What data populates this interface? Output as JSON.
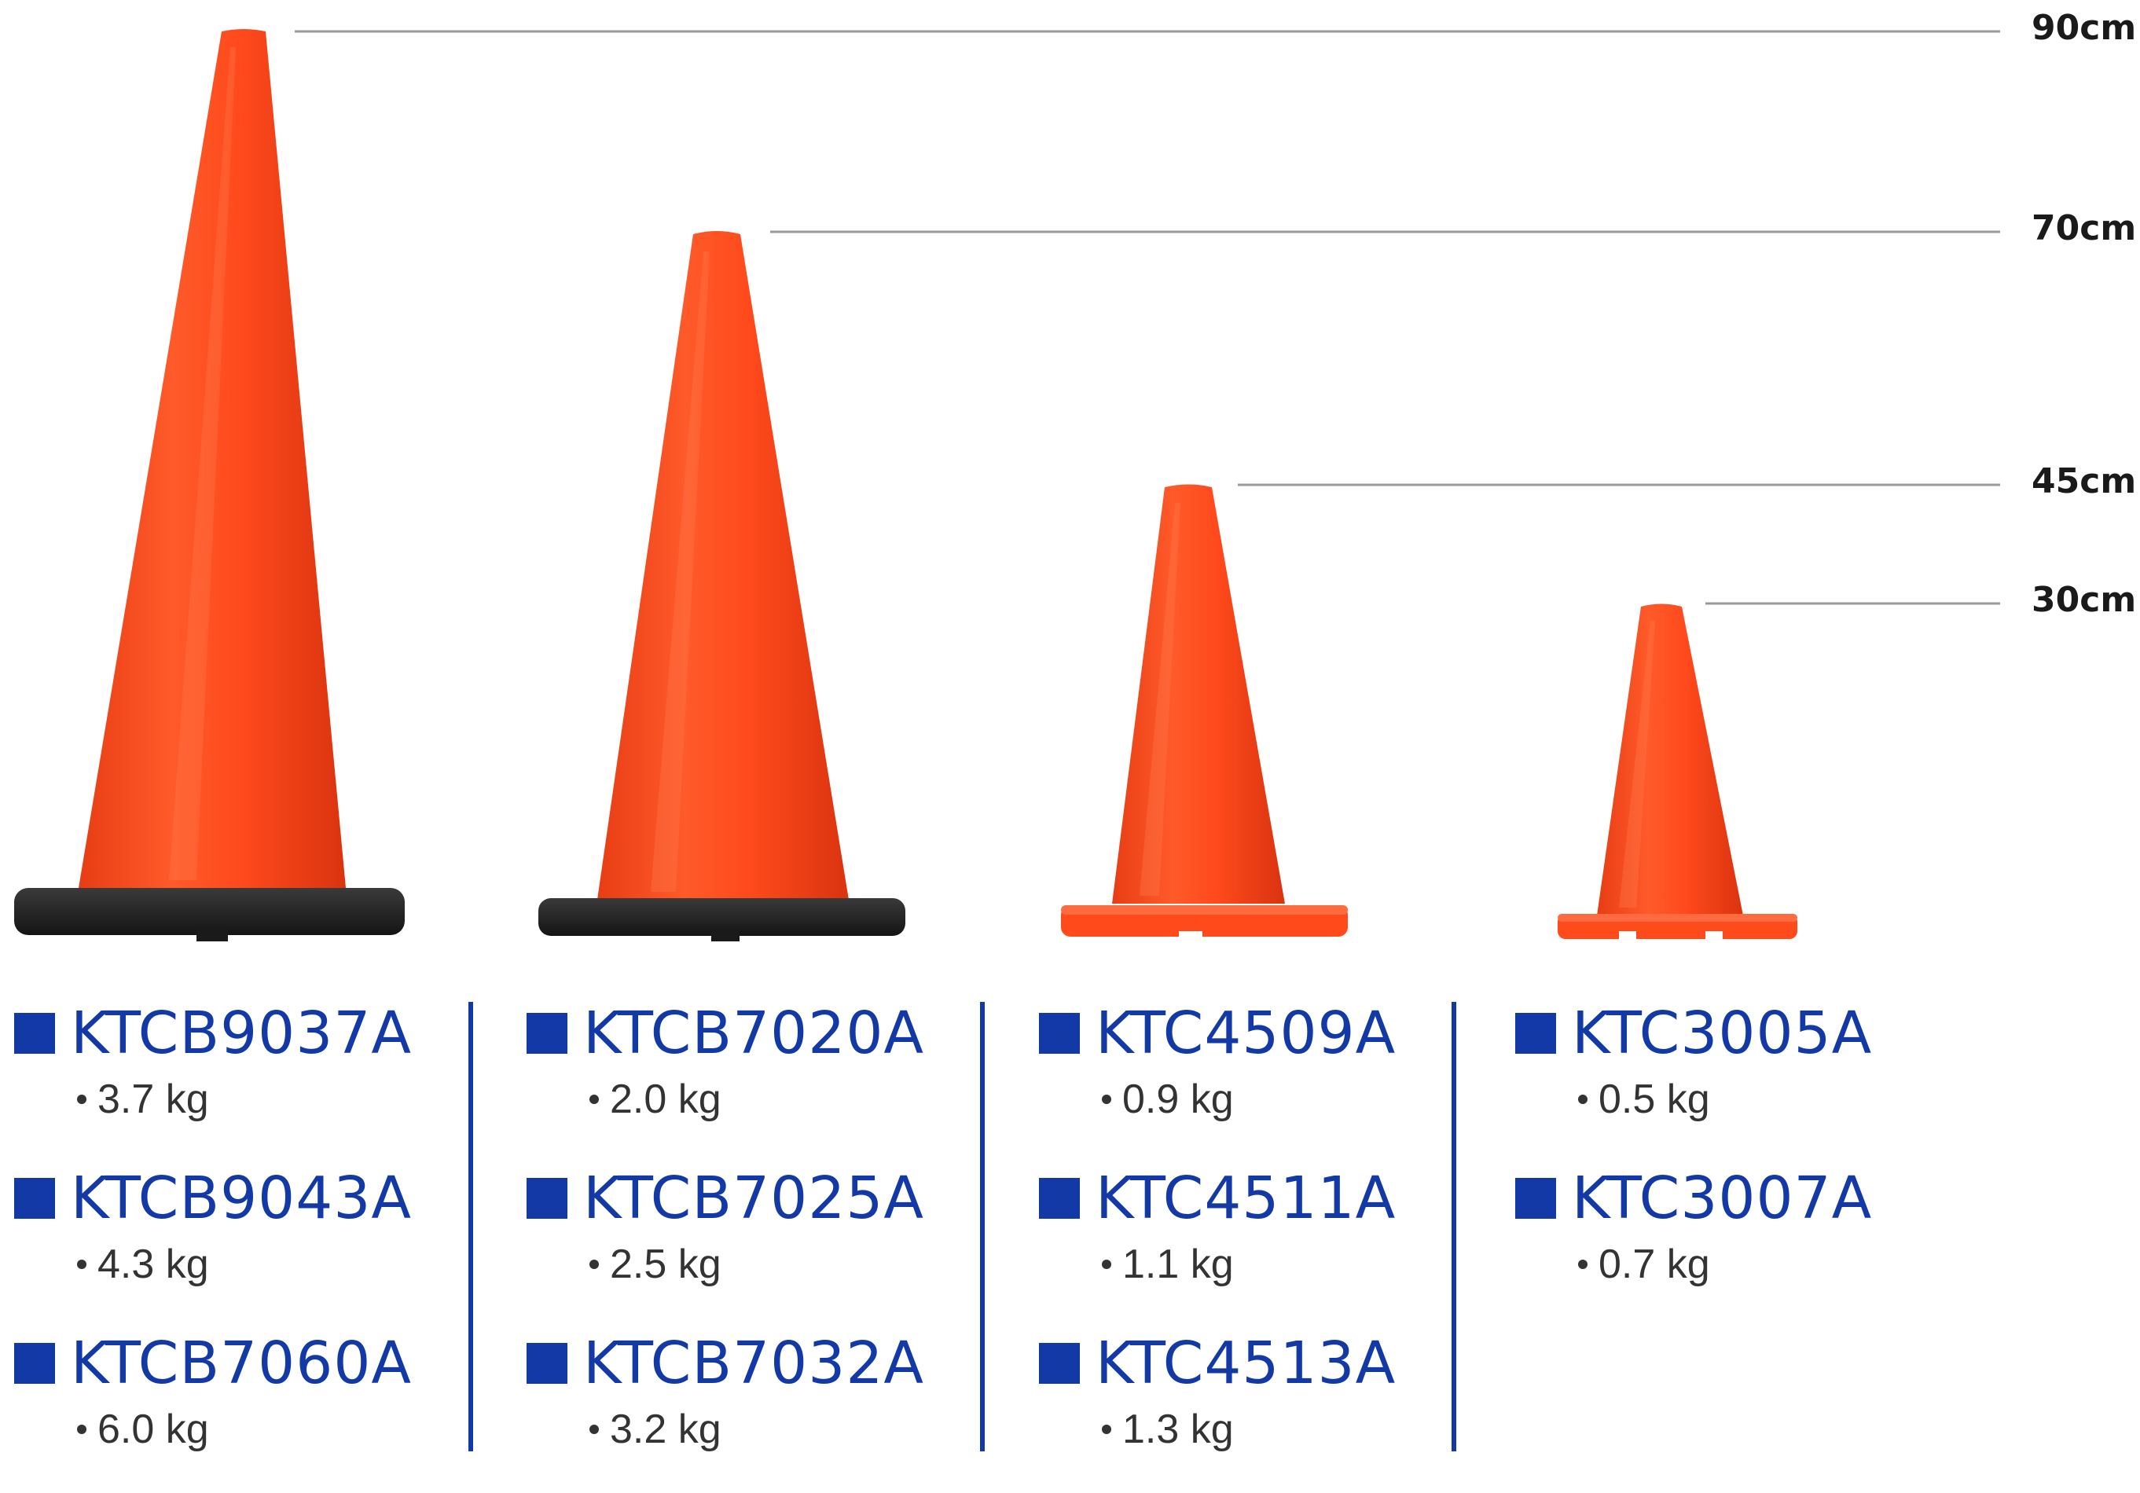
{
  "height_labels": [
    "90cm",
    "70cm",
    "45cm",
    "30cm"
  ],
  "colors": {
    "cone_orange": "#ff4a1c",
    "base_black": "#1e1e1e",
    "brand_blue": "#1339a6",
    "weight_text": "#333333",
    "guide_line": "#9a9a9a"
  },
  "columns": [
    {
      "cone_label": "90cm",
      "base_color": "black",
      "products": [
        {
          "code": "KTCB9037A",
          "weight": "3.7 kg"
        },
        {
          "code": "KTCB9043A",
          "weight": "4.3 kg"
        },
        {
          "code": "KTCB7060A",
          "weight": "6.0 kg"
        }
      ]
    },
    {
      "cone_label": "70cm",
      "base_color": "black",
      "products": [
        {
          "code": "KTCB7020A",
          "weight": "2.0 kg"
        },
        {
          "code": "KTCB7025A",
          "weight": "2.5 kg"
        },
        {
          "code": "KTCB7032A",
          "weight": "3.2 kg"
        }
      ]
    },
    {
      "cone_label": "45cm",
      "base_color": "orange",
      "products": [
        {
          "code": "KTC4509A",
          "weight": "0.9 kg"
        },
        {
          "code": "KTC4511A",
          "weight": "1.1 kg"
        },
        {
          "code": "KTC4513A",
          "weight": "1.3 kg"
        }
      ]
    },
    {
      "cone_label": "30cm",
      "base_color": "orange",
      "products": [
        {
          "code": "KTC3005A",
          "weight": "0.5 kg"
        },
        {
          "code": "KTC3007A",
          "weight": "0.7 kg"
        }
      ]
    }
  ]
}
